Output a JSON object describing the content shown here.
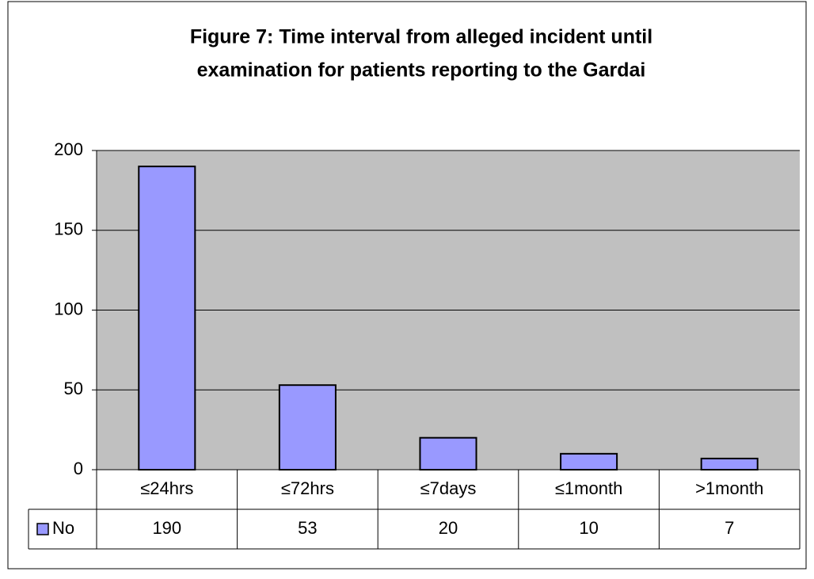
{
  "chart_data": {
    "type": "bar",
    "title": [
      "Figure 7: Time interval from alleged incident until",
      "examination for patients reporting to the Gardai"
    ],
    "categories": [
      "≤24hrs",
      "≤72hrs",
      "≤7days",
      "≤1month",
      ">1month"
    ],
    "series": [
      {
        "name": "No",
        "color": "#9999ff",
        "values": [
          190,
          53,
          20,
          10,
          7
        ]
      }
    ],
    "ylim": [
      0,
      200
    ],
    "yticks": [
      0,
      50,
      100,
      150,
      200
    ],
    "grid": true,
    "plot_background": "#c0c0c0",
    "data_table": true
  }
}
